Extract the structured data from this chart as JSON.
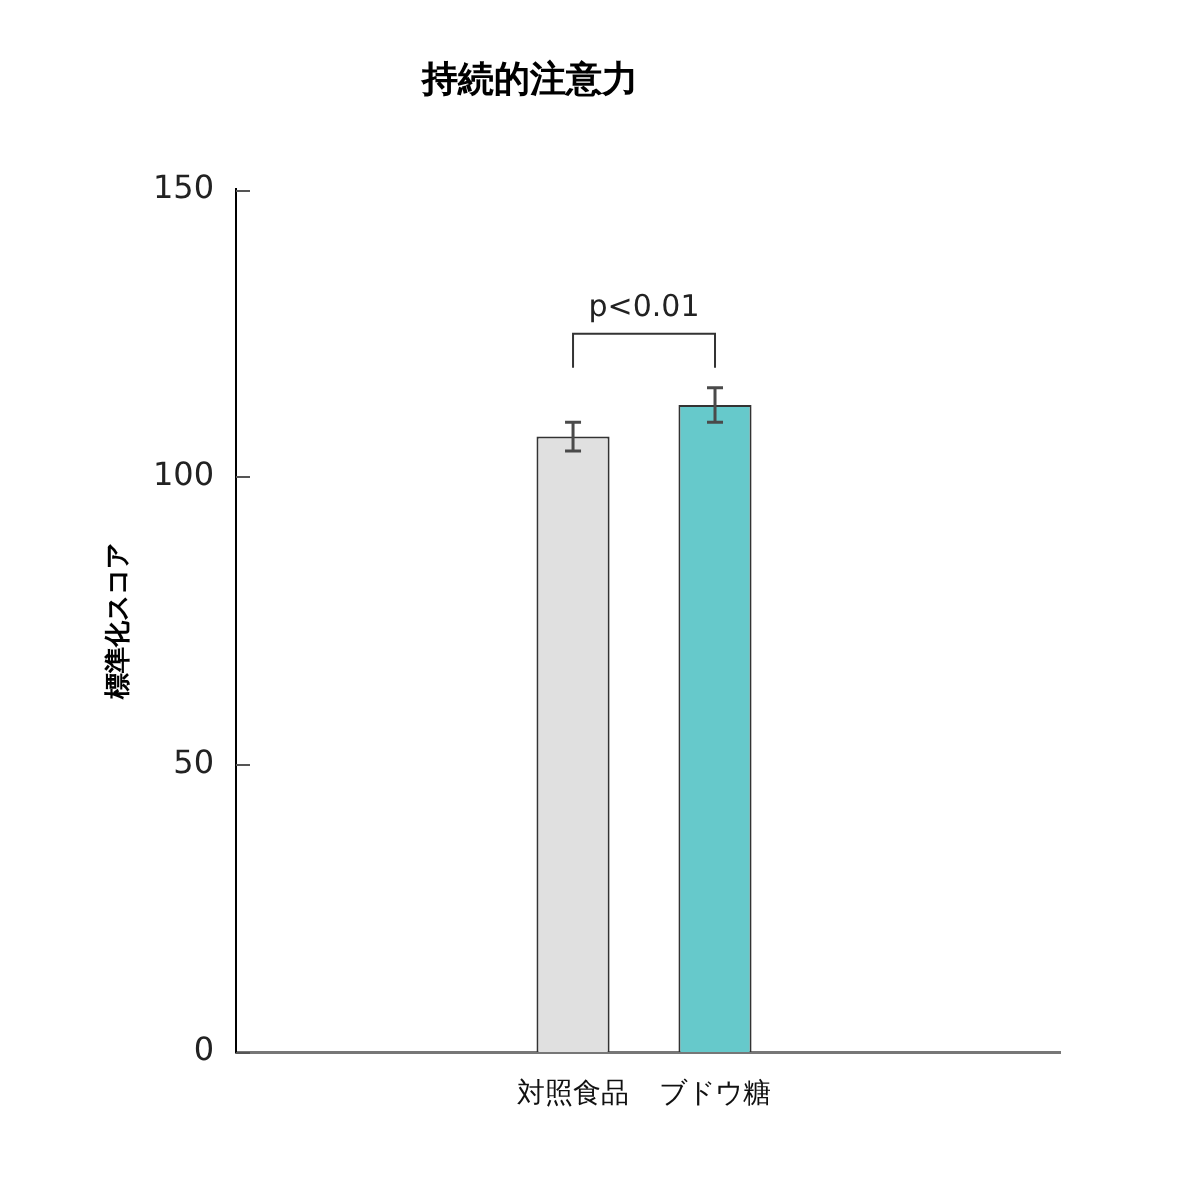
{
  "chart_data": {
    "type": "bar",
    "title": "持続的注意力",
    "ylabel": "標準化スコア",
    "categories": [
      "対照食品",
      "ブドウ糖"
    ],
    "values": [
      107,
      112.5
    ],
    "colors": [
      "#e0e0e0",
      "#66c9cb"
    ],
    "errors": [
      2.5,
      3
    ],
    "ylim": [
      0,
      150
    ],
    "yticks": [
      0,
      50,
      100,
      150
    ],
    "grid": false,
    "legend": false,
    "annotations": [
      "p<0.01"
    ]
  }
}
